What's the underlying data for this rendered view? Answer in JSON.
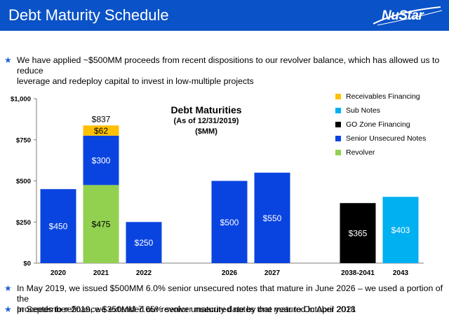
{
  "header": {
    "title": "Debt Maturity Schedule",
    "logo_text": "NuStar",
    "bg_color": "#0a52c7"
  },
  "bullets": [
    {
      "line1": "We have applied ~$500MM proceeds from recent dispositions to our revolver balance, which has allowed us to reduce",
      "line2": "leverage and redeploy capital to invest in low-multiple projects"
    },
    {
      "line1": "In May 2019, we issued $500MM 6.0% senior unsecured notes that mature in June 2026 – we used a portion of the",
      "line2": "proceeds to refinance $350MM 7.65% senior unsecured notes that matured in April 2018"
    },
    {
      "line1": "In September 2019, we extended our revolver maturity date by one year to October 2021"
    }
  ],
  "chart_data": {
    "type": "bar",
    "stacked": true,
    "title": "Debt Maturities",
    "subtitle_line1": "(As of 12/31/2019)",
    "subtitle_line2": "($MM)",
    "categories": [
      "2020",
      "2021",
      "2022",
      "2026",
      "2027",
      "2038-2041",
      "2043"
    ],
    "ylim": [
      0,
      1000
    ],
    "yticks": [
      0,
      250,
      500,
      750,
      1000
    ],
    "ytick_labels": [
      "$0",
      "$250",
      "$500",
      "$750",
      "$1,000"
    ],
    "series": [
      {
        "name": "Revolver",
        "color": "#92d050",
        "values": [
          0,
          475,
          0,
          0,
          0,
          0,
          0
        ]
      },
      {
        "name": "Senior Unsecured Notes",
        "color": "#0a44e0",
        "values": [
          450,
          300,
          250,
          500,
          550,
          0,
          0
        ]
      },
      {
        "name": "GO Zone Financing",
        "color": "#000000",
        "values": [
          0,
          0,
          0,
          0,
          0,
          365,
          0
        ]
      },
      {
        "name": "Sub Notes",
        "color": "#00b0f0",
        "values": [
          0,
          0,
          0,
          0,
          0,
          0,
          403
        ]
      },
      {
        "name": "Receivables Financing",
        "color": "#ffc000",
        "values": [
          0,
          62,
          0,
          0,
          0,
          0,
          0
        ]
      }
    ],
    "segment_labels": [
      [
        "",
        "$475",
        "",
        "",
        "",
        "",
        ""
      ],
      [
        "$450",
        "$300",
        "$250",
        "$500",
        "$550",
        "",
        ""
      ],
      [
        "",
        "",
        "",
        "",
        "",
        "$365",
        ""
      ],
      [
        "",
        "",
        "",
        "",
        "",
        "",
        "$403"
      ],
      [
        "",
        "$62",
        "",
        "",
        "",
        "",
        ""
      ]
    ],
    "total_labels": [
      "",
      "$837",
      "",
      "",
      "",
      "",
      ""
    ],
    "legend_order": [
      "Receivables Financing",
      "Sub Notes",
      "GO Zone Financing",
      "Senior Unsecured Notes",
      "Revolver"
    ],
    "legend_position": "top-right",
    "grid": false
  }
}
